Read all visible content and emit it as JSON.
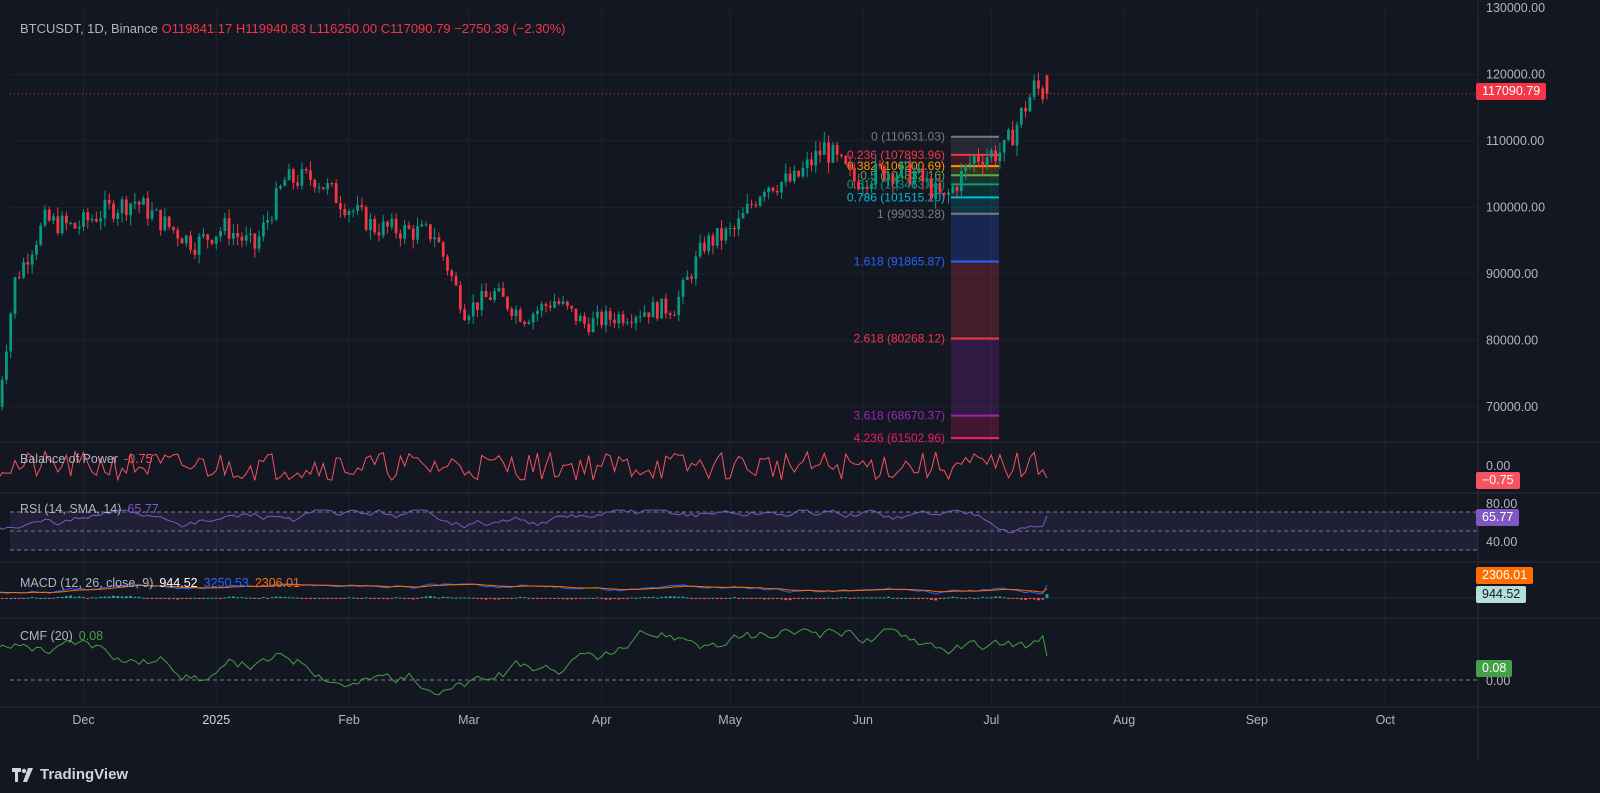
{
  "header": {
    "symbol": "BTCUSDT, 1D, Binance",
    "open": "O119841.17",
    "high": "H119940.83",
    "low": "L116250.00",
    "close": "C117090.79",
    "change": "−2750.39 (−2.30%)"
  },
  "price_axis": {
    "ticks": [
      "130000.00",
      "120000.00",
      "110000.00",
      "100000.00",
      "90000.00",
      "80000.00",
      "70000.00"
    ],
    "current_price_tag": "117090.79"
  },
  "time_axis": {
    "ticks": [
      "Dec",
      "2025",
      "Feb",
      "Mar",
      "Apr",
      "May",
      "Jun",
      "Jul",
      "Aug",
      "Sep",
      "Oct"
    ]
  },
  "fib_levels": [
    {
      "label": "0 (110631.03)",
      "color": "#787b86"
    },
    {
      "label": "0.236 (107893.96)",
      "color": "#f23645"
    },
    {
      "label": "0.382 (106200.69)",
      "color": "#ff9800"
    },
    {
      "label": "0.5 (104832.16)",
      "color": "#4caf50"
    },
    {
      "label": "0.618 (103463.62)",
      "color": "#089981"
    },
    {
      "label": "0.786 (101515.20)",
      "color": "#00bcd4"
    },
    {
      "label": "1 (99033.28)",
      "color": "#787b86"
    },
    {
      "label": "1.618 (91865.87)",
      "color": "#2962ff"
    },
    {
      "label": "2.618 (80268.12)",
      "color": "#f23645"
    },
    {
      "label": "3.618 (68670.37)",
      "color": "#9c27b0"
    },
    {
      "label": "4.236 (61502.96)",
      "color": "#e91e63"
    }
  ],
  "indicators": {
    "bop": {
      "name": "Balance of Power",
      "value": "-0.75",
      "axis_zero": "0.00",
      "tag": "−0.75",
      "color": "#f7525f"
    },
    "rsi": {
      "name": "RSI (14, SMA, 14)",
      "value": "65.77",
      "axis_high": "80.00",
      "axis_low": "40.00",
      "tag": "65.77",
      "color": "#7e57c2"
    },
    "macd": {
      "name": "MACD (12, 26, close, 9)",
      "hist": "944.52",
      "macd": "3250.53",
      "signal": "2306.01",
      "tag_signal": "2306.01",
      "tag_hist": "944.52"
    },
    "cmf": {
      "name": "CMF (20)",
      "value": "0.08",
      "axis_zero": "0.00",
      "tag": "0.08",
      "color": "#43a047"
    }
  },
  "footer": {
    "brand": "TradingView"
  },
  "chart_data": {
    "type": "candlestick",
    "title": "BTCUSDT, 1D, Binance",
    "x": [
      "2024-11-15",
      "2024-11-22",
      "2024-11-29",
      "2024-12-06",
      "2024-12-13",
      "2024-12-20",
      "2024-12-27",
      "2025-01-03",
      "2025-01-10",
      "2025-01-17",
      "2025-01-24",
      "2025-01-31",
      "2025-02-07",
      "2025-02-14",
      "2025-02-21",
      "2025-02-28",
      "2025-03-07",
      "2025-03-14",
      "2025-03-21",
      "2025-03-28",
      "2025-04-04",
      "2025-04-11",
      "2025-04-18",
      "2025-04-25",
      "2025-05-02",
      "2025-05-09",
      "2025-05-16",
      "2025-05-23",
      "2025-05-30",
      "2025-06-06",
      "2025-06-13",
      "2025-06-20",
      "2025-06-27",
      "2025-07-04",
      "2025-07-11",
      "2025-07-14"
    ],
    "close": [
      89000,
      98000,
      97000,
      99500,
      101000,
      97500,
      94500,
      97000,
      94000,
      104000,
      104500,
      100500,
      97000,
      96500,
      96000,
      84500,
      87000,
      83500,
      86000,
      82500,
      83500,
      84500,
      85000,
      94500,
      96500,
      103500,
      104000,
      109000,
      104000,
      105500,
      105000,
      101000,
      107500,
      108500,
      118000,
      117090.79
    ],
    "ylim": [
      65000,
      130000
    ],
    "fib_levels": [
      110631.03,
      107893.96,
      106200.69,
      104832.16,
      103463.62,
      101515.2,
      99033.28,
      91865.87,
      80268.12,
      68670.37,
      61502.96
    ],
    "indicators": {
      "bop": -0.75,
      "rsi": 65.77,
      "macd": {
        "hist": 944.52,
        "macd": 3250.53,
        "signal": 2306.01
      },
      "cmf": 0.08
    }
  }
}
